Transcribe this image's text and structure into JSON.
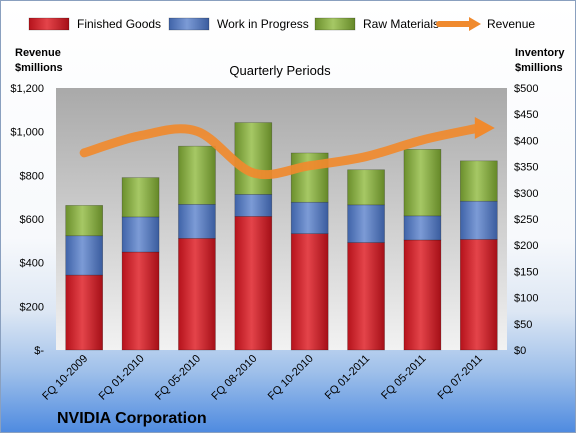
{
  "chart_data": {
    "type": "bar",
    "stacked": true,
    "title": "Quarterly Periods",
    "company": "NVIDIA Corporation",
    "left_axis_label": [
      "Revenue",
      "$millions"
    ],
    "right_axis_label": [
      "Inventory",
      "$millions"
    ],
    "categories": [
      "FQ 10-2009",
      "FQ 01-2010",
      "FQ 05-2010",
      "FQ 08-2010",
      "FQ 10-2010",
      "FQ 01-2011",
      "FQ 05-2011",
      "FQ 07-2011"
    ],
    "series": [
      {
        "name": "Finished Goods",
        "axis": "right",
        "color": "#d9262c",
        "values": [
          143,
          187,
          213,
          255,
          222,
          205,
          210,
          211
        ]
      },
      {
        "name": "Work in Progress",
        "axis": "right",
        "color": "#5b7fc2",
        "values": [
          75,
          67,
          65,
          42,
          60,
          72,
          46,
          73
        ]
      },
      {
        "name": "Raw Materials",
        "axis": "right",
        "color": "#8cb04a",
        "values": [
          58,
          75,
          111,
          137,
          94,
          67,
          127,
          77
        ]
      },
      {
        "name": "Revenue",
        "axis": "left",
        "type": "line",
        "color": "#f08a2e",
        "values": [
          903,
          982,
          1002,
          811,
          844,
          886,
          962,
          1017
        ]
      }
    ],
    "left_axis": {
      "ylim": [
        0,
        1200
      ],
      "ticks": [
        "$-",
        "$200",
        "$400",
        "$600",
        "$800",
        "$1,000",
        "$1,200"
      ]
    },
    "right_axis": {
      "ylim": [
        0,
        500
      ],
      "ticks": [
        "$0",
        "$50",
        "$100",
        "$150",
        "$200",
        "$250",
        "$300",
        "$350",
        "$400",
        "$450",
        "$500"
      ]
    },
    "legend_position": "top",
    "grid": false
  }
}
